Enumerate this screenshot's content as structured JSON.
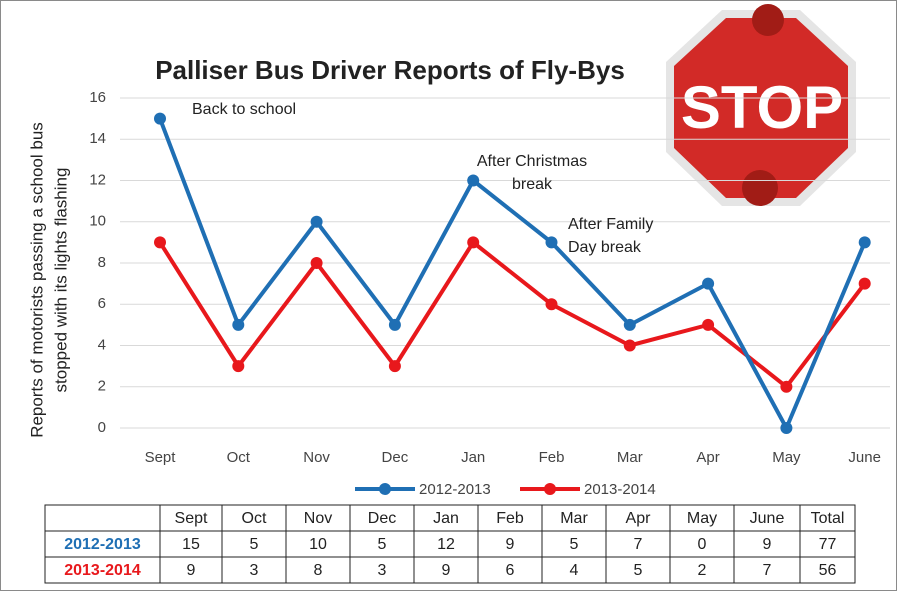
{
  "chart_data": {
    "type": "line",
    "title": "Palliser Bus Driver Reports of Fly-Bys",
    "ylabel": [
      "Reports of motorists passing a school bus",
      "stopped with its lights flashing"
    ],
    "categories": [
      "Sept",
      "Oct",
      "Nov",
      "Dec",
      "Jan",
      "Feb",
      "Mar",
      "Apr",
      "May",
      "June"
    ],
    "series": [
      {
        "name": "2012-2013",
        "color": "#1f6fb4",
        "values": [
          15,
          5,
          10,
          5,
          12,
          9,
          5,
          7,
          0,
          9
        ]
      },
      {
        "name": "2013-2014",
        "color": "#e8181c",
        "values": [
          9,
          3,
          8,
          3,
          9,
          6,
          4,
          5,
          2,
          7
        ]
      }
    ],
    "ylim": [
      0,
      16
    ],
    "yticks": [
      0,
      2,
      4,
      6,
      8,
      10,
      12,
      14,
      16
    ],
    "grid": true,
    "annotations": [
      {
        "lines": [
          "Back to school"
        ]
      },
      {
        "lines": [
          "After Christmas",
          "break"
        ]
      },
      {
        "lines": [
          "After Family",
          "Day break"
        ]
      }
    ]
  },
  "table": {
    "total_label": "Total",
    "totals": [
      77,
      56
    ]
  },
  "sign": {
    "text": "STOP"
  }
}
